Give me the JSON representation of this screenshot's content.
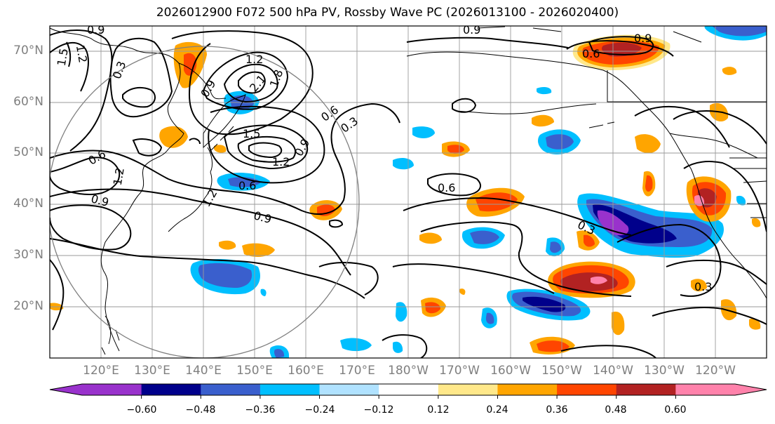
{
  "title": "2026012900 F072 500 hPa PV, Rossby Wave PC (2026013100 - 2026020400)",
  "lat_labels": [
    "70°N",
    "60°N",
    "50°N",
    "40°N",
    "30°N",
    "20°N"
  ],
  "lon_labels": [
    "120°E",
    "130°E",
    "140°E",
    "150°E",
    "160°E",
    "170°E",
    "180°W",
    "170°W",
    "160°W",
    "150°W",
    "140°W",
    "130°W",
    "120°W"
  ],
  "contour_labels": [
    "0.9",
    "1.2",
    "1.5",
    "0.3",
    "0.9",
    "1.2",
    "1.8",
    "2.1",
    "1.5",
    "0.6",
    "0.3",
    "1.2",
    "0.9",
    "0.6",
    "1.2",
    "0.9",
    "0.6",
    "0.9",
    "0.6",
    "0.9",
    "0.3",
    "0.6",
    "1.2",
    "0.3"
  ],
  "colorbar": {
    "ticks": [
      "−0.60",
      "−0.48",
      "−0.36",
      "−0.24",
      "−0.12",
      "0.12",
      "0.24",
      "0.36",
      "0.48",
      "0.60"
    ],
    "colors": [
      "#9932cc",
      "#00008b",
      "#3a5fcd",
      "#00bfff",
      "#b0e2ff",
      "#ffffff",
      "#ffe88a",
      "#ffa500",
      "#ff4500",
      "#b22222",
      "#ff82ab"
    ]
  }
}
